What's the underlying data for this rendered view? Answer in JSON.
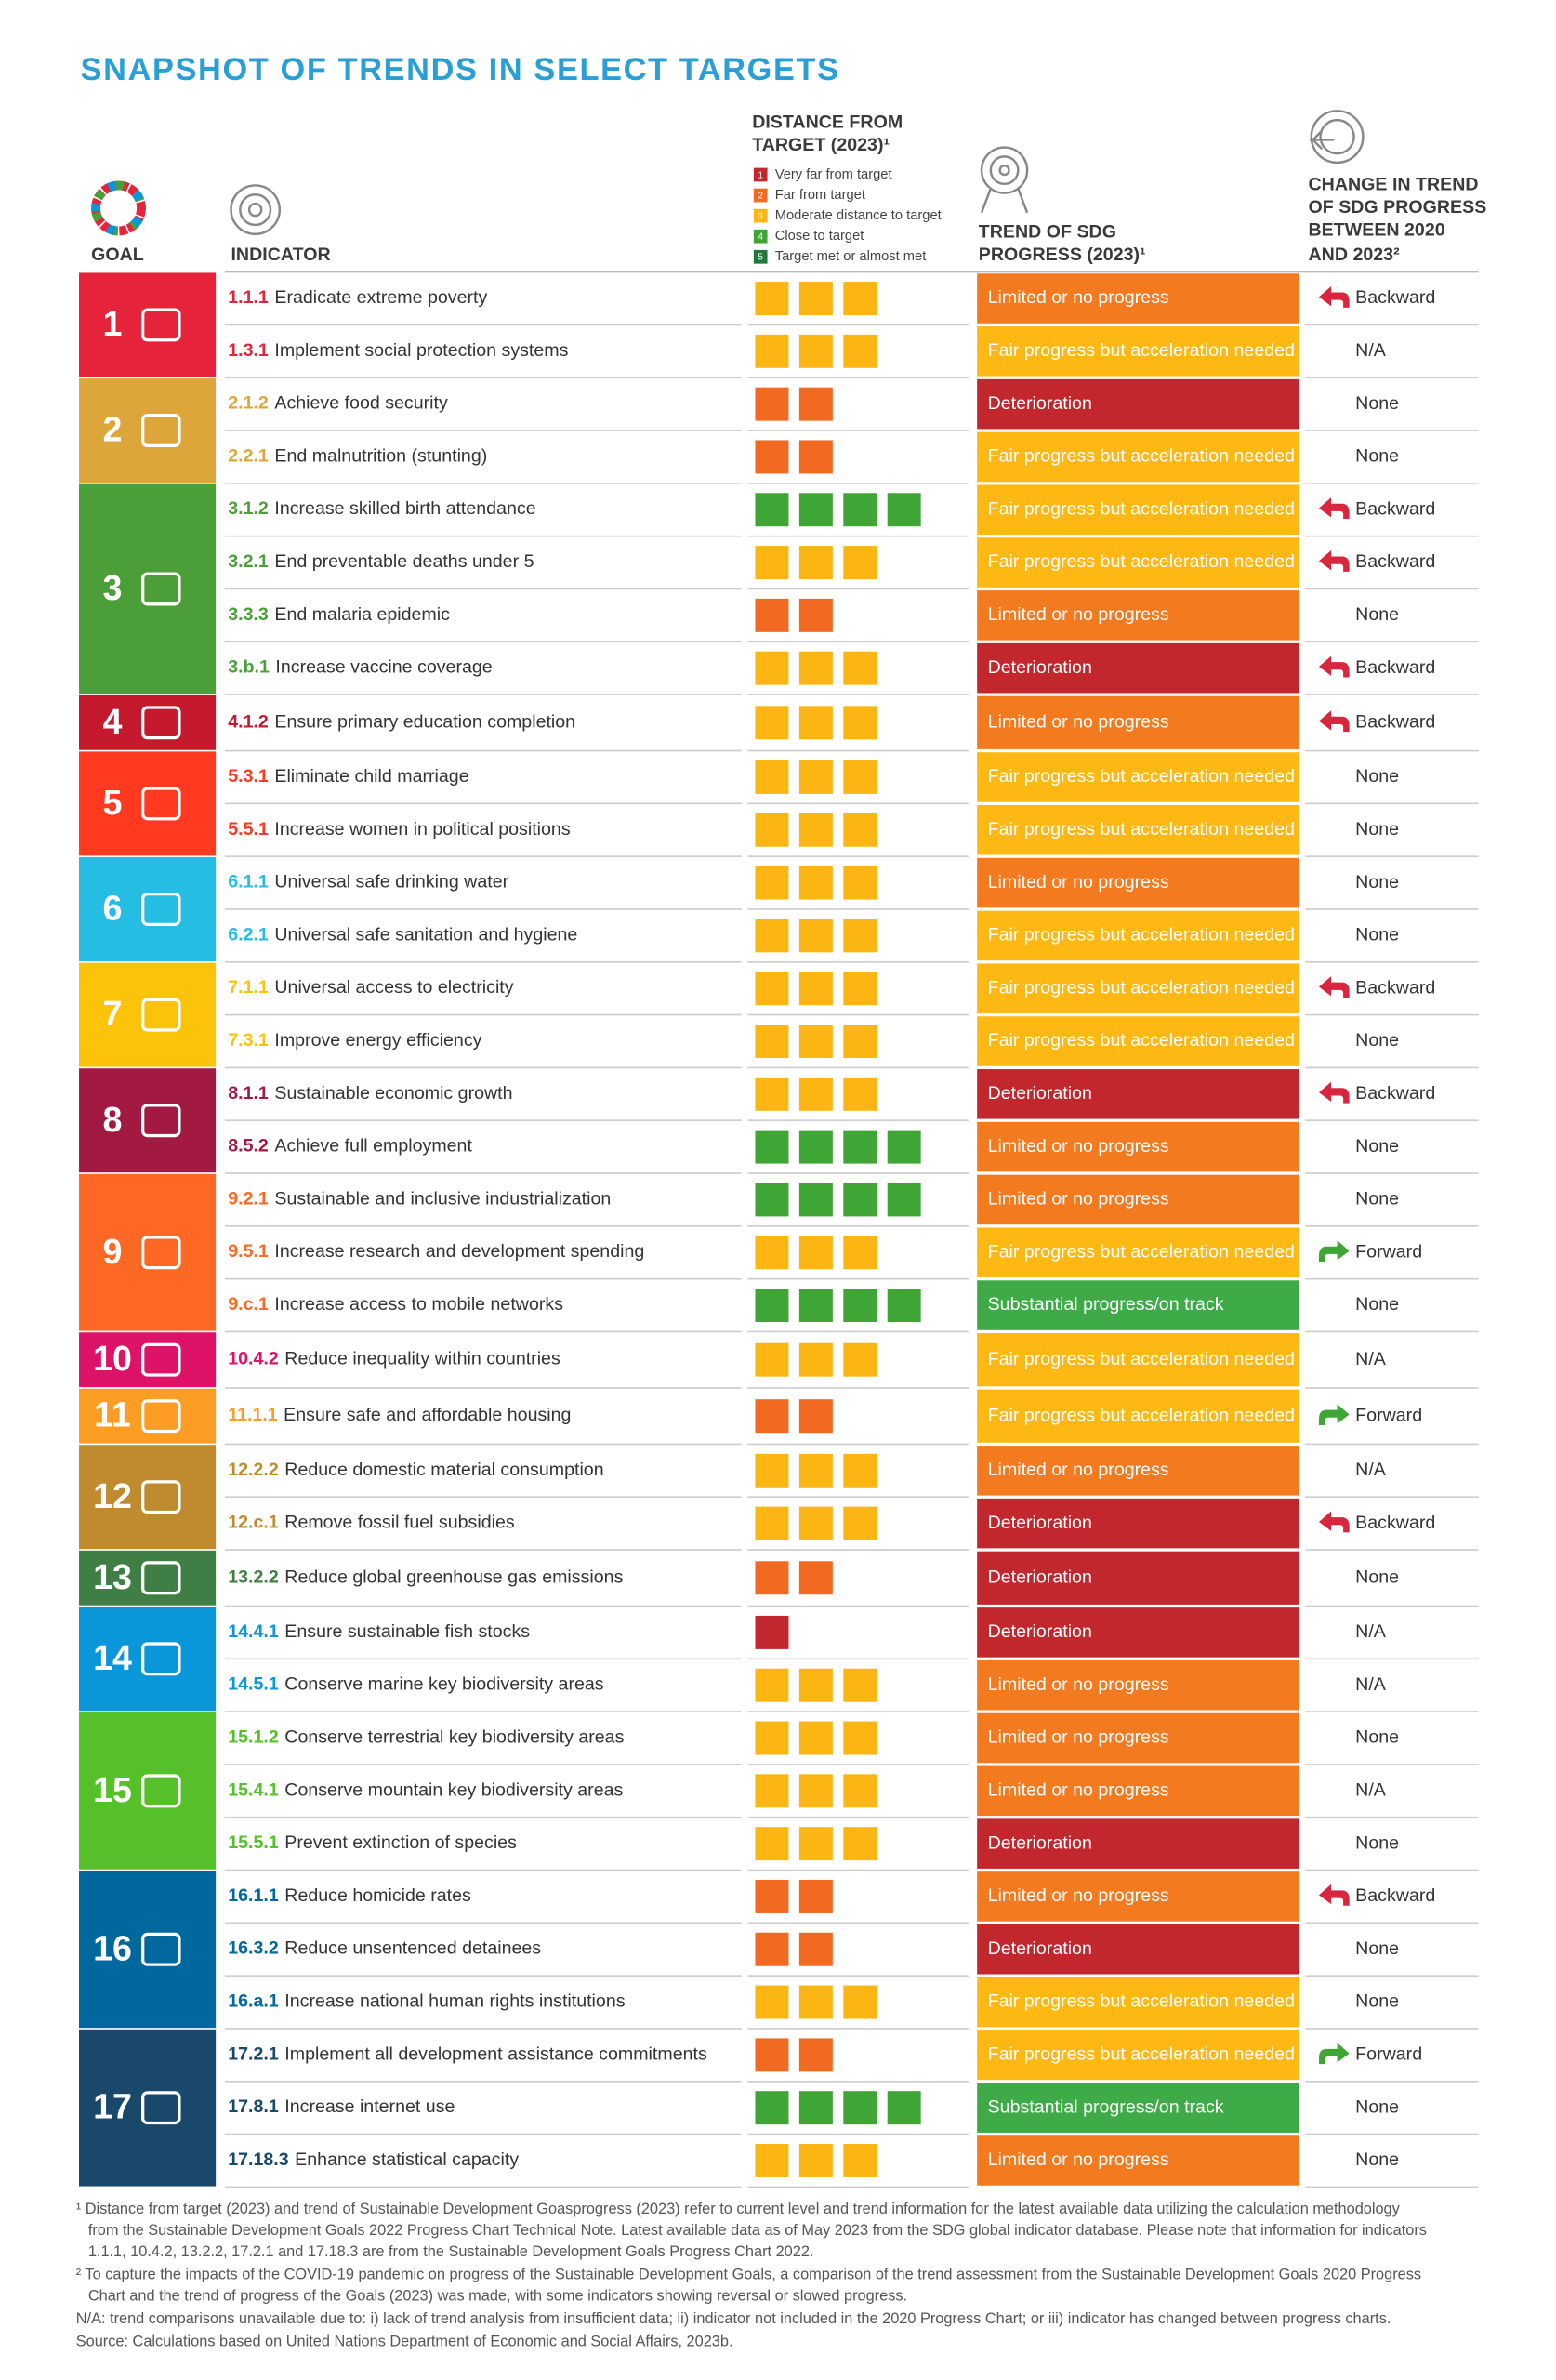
{
  "title": "SNAPSHOT OF TRENDS IN SELECT TARGETS",
  "headers": {
    "goal": "GOAL",
    "indicator": "INDICATOR",
    "distance": [
      "DISTANCE FROM",
      "TARGET (2023)¹"
    ],
    "trend": [
      "TREND OF SDG",
      "PROGRESS (2023)¹"
    ],
    "change": [
      "CHANGE IN TREND",
      "OF SDG PROGRESS",
      "BETWEEN 2020",
      "AND 2023²"
    ]
  },
  "legend": [
    {
      "level": 1,
      "label": "Very far from target",
      "color": "#c1272d"
    },
    {
      "level": 2,
      "label": "Far from target",
      "color": "#f26a21"
    },
    {
      "level": 3,
      "label": "Moderate distance to target",
      "color": "#fbb614"
    },
    {
      "level": 4,
      "label": "Close to target",
      "color": "#3fa535"
    },
    {
      "level": 5,
      "label": "Target met or almost met",
      "color": "#1d7a3a"
    }
  ],
  "goals": [
    {
      "number": 1,
      "color": "#e5243b",
      "rows": [
        {
          "code": "1.1.1",
          "text": "Eradicate extreme poverty",
          "distance": 3,
          "trend": "Limited or no progress",
          "trend_color": "#f47a20",
          "change": "Backward",
          "arrow": "back",
          "arrow_color": "#d7263d"
        },
        {
          "code": "1.3.1",
          "text": "Implement social protection systems",
          "distance": 3,
          "trend": "Fair progress but acceleration needed",
          "trend_color": "#fdb813",
          "change": "N/A"
        }
      ]
    },
    {
      "number": 2,
      "color": "#dda63a",
      "rows": [
        {
          "code": "2.1.2",
          "text": "Achieve food security",
          "distance": 2,
          "trend": "Deterioration",
          "trend_color": "#c1272d",
          "change": "None"
        },
        {
          "code": "2.2.1",
          "text": "End malnutrition (stunting)",
          "distance": 2,
          "trend": "Fair progress but acceleration needed",
          "trend_color": "#fdb813",
          "change": "None"
        }
      ]
    },
    {
      "number": 3,
      "color": "#4c9f38",
      "rows": [
        {
          "code": "3.1.2",
          "text": "Increase skilled birth attendance",
          "distance": 4,
          "trend": "Fair progress but acceleration needed",
          "trend_color": "#fdb813",
          "change": "Backward",
          "arrow": "back",
          "arrow_color": "#d7263d"
        },
        {
          "code": "3.2.1",
          "text": "End preventable deaths under 5",
          "distance": 3,
          "trend": "Fair progress but acceleration needed",
          "trend_color": "#fdb813",
          "change": "Backward",
          "arrow": "back",
          "arrow_color": "#d7263d"
        },
        {
          "code": "3.3.3",
          "text": "End malaria epidemic",
          "distance": 2,
          "trend": "Limited or no progress",
          "trend_color": "#f47a20",
          "change": "None"
        },
        {
          "code": "3.b.1",
          "text": "Increase vaccine coverage",
          "distance": 3,
          "trend": "Deterioration",
          "trend_color": "#c1272d",
          "change": "Backward",
          "arrow": "back",
          "arrow_color": "#d7263d"
        }
      ]
    },
    {
      "number": 4,
      "color": "#c5192d",
      "rows": [
        {
          "code": "4.1.2",
          "text": "Ensure primary education completion",
          "distance": 3,
          "trend": "Limited or no progress",
          "trend_color": "#f47a20",
          "change": "Backward",
          "arrow": "back",
          "arrow_color": "#d7263d"
        }
      ]
    },
    {
      "number": 5,
      "color": "#ff3a21",
      "rows": [
        {
          "code": "5.3.1",
          "text": "Eliminate child marriage",
          "distance": 3,
          "trend": "Fair progress but acceleration needed",
          "trend_color": "#fdb813",
          "change": "None"
        },
        {
          "code": "5.5.1",
          "text": "Increase women in political positions",
          "distance": 3,
          "trend": "Fair progress but acceleration needed",
          "trend_color": "#fdb813",
          "change": "None"
        }
      ]
    },
    {
      "number": 6,
      "color": "#26bde2",
      "rows": [
        {
          "code": "6.1.1",
          "text": "Universal safe drinking water",
          "distance": 3,
          "trend": "Limited or no progress",
          "trend_color": "#f47a20",
          "change": "None"
        },
        {
          "code": "6.2.1",
          "text": "Universal safe sanitation and hygiene",
          "distance": 3,
          "trend": "Fair progress but acceleration needed",
          "trend_color": "#fdb813",
          "change": "None"
        }
      ]
    },
    {
      "number": 7,
      "color": "#fcc30b",
      "rows": [
        {
          "code": "7.1.1",
          "text": "Universal access to electricity",
          "distance": 3,
          "trend": "Fair progress but acceleration needed",
          "trend_color": "#fdb813",
          "change": "Backward",
          "arrow": "back",
          "arrow_color": "#d7263d"
        },
        {
          "code": "7.3.1",
          "text": "Improve energy efficiency",
          "distance": 3,
          "trend": "Fair progress but acceleration needed",
          "trend_color": "#fdb813",
          "change": "None"
        }
      ]
    },
    {
      "number": 8,
      "color": "#a21942",
      "rows": [
        {
          "code": "8.1.1",
          "text": "Sustainable economic growth",
          "distance": 3,
          "trend": "Deterioration",
          "trend_color": "#c1272d",
          "change": "Backward",
          "arrow": "back",
          "arrow_color": "#d7263d"
        },
        {
          "code": "8.5.2",
          "text": "Achieve full employment",
          "distance": 4,
          "trend": "Limited or no progress",
          "trend_color": "#f47a20",
          "change": "None"
        }
      ]
    },
    {
      "number": 9,
      "color": "#fd6925",
      "rows": [
        {
          "code": "9.2.1",
          "text": "Sustainable and inclusive industrialization",
          "distance": 4,
          "trend": "Limited or no progress",
          "trend_color": "#f47a20",
          "change": "None"
        },
        {
          "code": "9.5.1",
          "text": "Increase research and development spending",
          "distance": 3,
          "trend": "Fair progress but acceleration needed",
          "trend_color": "#fdb813",
          "change": "Forward",
          "arrow": "forward",
          "arrow_color": "#3fa535"
        },
        {
          "code": "9.c.1",
          "text": "Increase access to mobile networks",
          "distance": 4,
          "trend": "Substantial progress/on track",
          "trend_color": "#3fab48",
          "change": "None"
        }
      ]
    },
    {
      "number": 10,
      "color": "#dd1367",
      "rows": [
        {
          "code": "10.4.2",
          "text": "Reduce inequality within countries",
          "distance": 3,
          "trend": "Fair progress but acceleration needed",
          "trend_color": "#fdb813",
          "change": "N/A"
        }
      ]
    },
    {
      "number": 11,
      "color": "#fd9d24",
      "rows": [
        {
          "code": "11.1.1",
          "text": "Ensure safe and affordable housing",
          "distance": 2,
          "trend": "Fair progress but acceleration needed",
          "trend_color": "#fdb813",
          "change": "Forward",
          "arrow": "forward",
          "arrow_color": "#3fa535"
        }
      ]
    },
    {
      "number": 12,
      "color": "#bf8b2e",
      "rows": [
        {
          "code": "12.2.2",
          "text": "Reduce domestic material consumption",
          "distance": 3,
          "trend": "Limited or no progress",
          "trend_color": "#f47a20",
          "change": "N/A"
        },
        {
          "code": "12.c.1",
          "text": "Remove fossil fuel subsidies",
          "distance": 3,
          "trend": "Deterioration",
          "trend_color": "#c1272d",
          "change": "Backward",
          "arrow": "back",
          "arrow_color": "#d7263d"
        }
      ]
    },
    {
      "number": 13,
      "color": "#3f7e44",
      "rows": [
        {
          "code": "13.2.2",
          "text": "Reduce global greenhouse gas emissions",
          "distance": 2,
          "trend": "Deterioration",
          "trend_color": "#c1272d",
          "change": "None"
        }
      ]
    },
    {
      "number": 14,
      "color": "#0a97d9",
      "rows": [
        {
          "code": "14.4.1",
          "text": "Ensure sustainable fish stocks",
          "distance": 1,
          "trend": "Deterioration",
          "trend_color": "#c1272d",
          "change": "N/A"
        },
        {
          "code": "14.5.1",
          "text": "Conserve marine key biodiversity areas",
          "distance": 3,
          "trend": "Limited or no progress",
          "trend_color": "#f47a20",
          "change": "N/A"
        }
      ]
    },
    {
      "number": 15,
      "color": "#56c02b",
      "rows": [
        {
          "code": "15.1.2",
          "text": "Conserve terrestrial key biodiversity areas",
          "distance": 3,
          "trend": "Limited or no progress",
          "trend_color": "#f47a20",
          "change": "None"
        },
        {
          "code": "15.4.1",
          "text": "Conserve mountain key biodiversity areas",
          "distance": 3,
          "trend": "Limited or no progress",
          "trend_color": "#f47a20",
          "change": "N/A"
        },
        {
          "code": "15.5.1",
          "text": "Prevent extinction of species",
          "distance": 3,
          "trend": "Deterioration",
          "trend_color": "#c1272d",
          "change": "None"
        }
      ]
    },
    {
      "number": 16,
      "color": "#00689d",
      "rows": [
        {
          "code": "16.1.1",
          "text": "Reduce homicide rates",
          "distance": 2,
          "trend": "Limited or no progress",
          "trend_color": "#f47a20",
          "change": "Backward",
          "arrow": "back",
          "arrow_color": "#d7263d"
        },
        {
          "code": "16.3.2",
          "text": "Reduce unsentenced detainees",
          "distance": 2,
          "trend": "Deterioration",
          "trend_color": "#c1272d",
          "change": "None"
        },
        {
          "code": "16.a.1",
          "text": "Increase national human rights institutions",
          "distance": 3,
          "trend": "Fair progress but acceleration needed",
          "trend_color": "#fdb813",
          "change": "None"
        }
      ]
    },
    {
      "number": 17,
      "color": "#19486a",
      "rows": [
        {
          "code": "17.2.1",
          "text": "Implement all development assistance commitments",
          "distance": 2,
          "trend": "Fair progress but acceleration needed",
          "trend_color": "#fdb813",
          "change": "Forward",
          "arrow": "forward",
          "arrow_color": "#3fa535"
        },
        {
          "code": "17.8.1",
          "text": "Increase internet use",
          "distance": 4,
          "trend": "Substantial progress/on track",
          "trend_color": "#3fab48",
          "change": "None"
        },
        {
          "code": "17.18.3",
          "text": "Enhance statistical capacity",
          "distance": 3,
          "trend": "Limited or no progress",
          "trend_color": "#f47a20",
          "change": "None"
        }
      ]
    }
  ],
  "footnotes": [
    [
      "¹ Distance from target (2023) and trend of Sustainable Development Goasprogress (2023) refer to current level and trend information for the latest available data utilizing the calculation methodology",
      "from the Sustainable Development Goals 2022 Progress Chart Technical Note. Latest available data as of May 2023 from the SDG global indicator database. Please note that information for indicators",
      "1.1.1, 10.4.2, 13.2.2, 17.2.1 and 17.18.3 are from the Sustainable Development Goals Progress Chart 2022."
    ],
    [
      "² To capture the impacts of the COVID-19 pandemic on progress of the Sustainable Development Goals, a comparison of the trend assessment from the Sustainable Development Goals 2020 Progress",
      "Chart and the trend of progress of the Goals (2023) was made, with some indicators showing reversal or slowed progress."
    ],
    [
      "N/A: trend comparisons unavailable due to: i) lack of trend analysis from insufficient data; ii) indicator not included in the 2020 Progress Chart; or iii) indicator has changed between progress charts."
    ],
    [
      "Source: Calculations based on United Nations Department of Economic and Social Affairs, 2023b."
    ]
  ]
}
